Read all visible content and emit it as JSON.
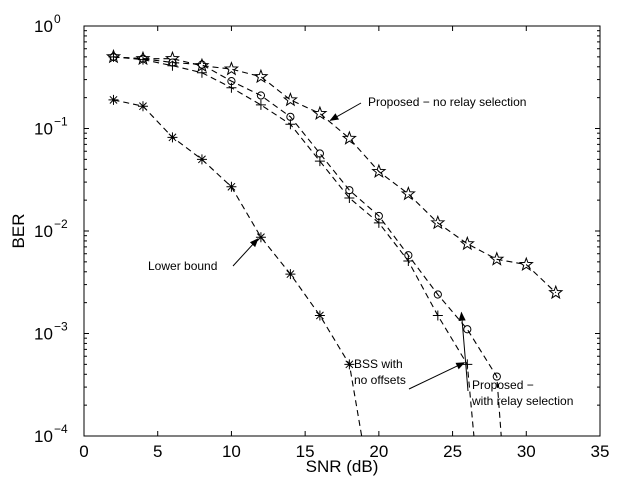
{
  "chart_data": {
    "type": "line",
    "xlabel": "SNR (dB)",
    "ylabel": "BER",
    "xlim": [
      0,
      35
    ],
    "ylim": [
      0.0001,
      1
    ],
    "yscale": "log",
    "grid": false,
    "x_ticks": [
      "0",
      "5",
      "10",
      "15",
      "20",
      "25",
      "30",
      "35"
    ],
    "y_ticks": [
      {
        "value": 1,
        "base": "10",
        "exp": "0"
      },
      {
        "value": 0.1,
        "base": "10",
        "exp": "−1"
      },
      {
        "value": 0.01,
        "base": "10",
        "exp": "−2"
      },
      {
        "value": 0.001,
        "base": "10",
        "exp": "−3"
      },
      {
        "value": 0.0001,
        "base": "10",
        "exp": "−4"
      }
    ],
    "series": [
      {
        "marker": "star",
        "x": [
          2,
          4,
          6,
          8,
          10,
          12,
          14,
          16,
          18,
          20,
          22,
          24,
          26,
          28,
          30,
          32
        ],
        "y": [
          0.5,
          0.48,
          0.48,
          0.41,
          0.38,
          0.32,
          0.19,
          0.14,
          0.08,
          0.038,
          0.023,
          0.012,
          0.0075,
          0.0053,
          0.0047,
          0.0025
        ]
      },
      {
        "marker": "circle",
        "x": [
          2,
          4,
          6,
          8,
          10,
          12,
          14,
          16,
          18,
          20,
          22,
          24,
          26,
          28
        ],
        "y": [
          0.5,
          0.48,
          0.44,
          0.42,
          0.29,
          0.21,
          0.13,
          0.057,
          0.025,
          0.014,
          0.0058,
          0.0024,
          0.0011,
          0.00038
        ],
        "tail_x": 28.5
      },
      {
        "marker": "plus",
        "x": [
          2,
          4,
          6,
          8,
          10,
          12,
          14,
          16,
          18,
          20,
          22,
          24,
          26
        ],
        "y": [
          0.5,
          0.47,
          0.41,
          0.35,
          0.25,
          0.17,
          0.11,
          0.048,
          0.021,
          0.012,
          0.0051,
          0.0015,
          0.0005
        ],
        "tail_x": 26.7
      },
      {
        "marker": "asterisk",
        "x": [
          2,
          4,
          6,
          8,
          10,
          12,
          14,
          16,
          18
        ],
        "y": [
          0.19,
          0.165,
          0.082,
          0.05,
          0.027,
          0.0087,
          0.0038,
          0.0015,
          0.0005
        ],
        "tail_x": 19.3
      }
    ],
    "annotations": [
      {
        "lines": [
          "Proposed − no relay selection"
        ],
        "arrow_to": [
          16.7,
          0.12
        ]
      },
      {
        "lines": [
          "Proposed −",
          "with relay selection"
        ],
        "arrow_to": [
          25.6,
          0.0016
        ]
      },
      {
        "lines": [
          "BSS with",
          "no offsets"
        ],
        "arrow_to": [
          25.8,
          0.00052
        ]
      },
      {
        "lines": [
          "Lower bound"
        ],
        "arrow_to": [
          11.8,
          0.0084
        ]
      }
    ]
  }
}
